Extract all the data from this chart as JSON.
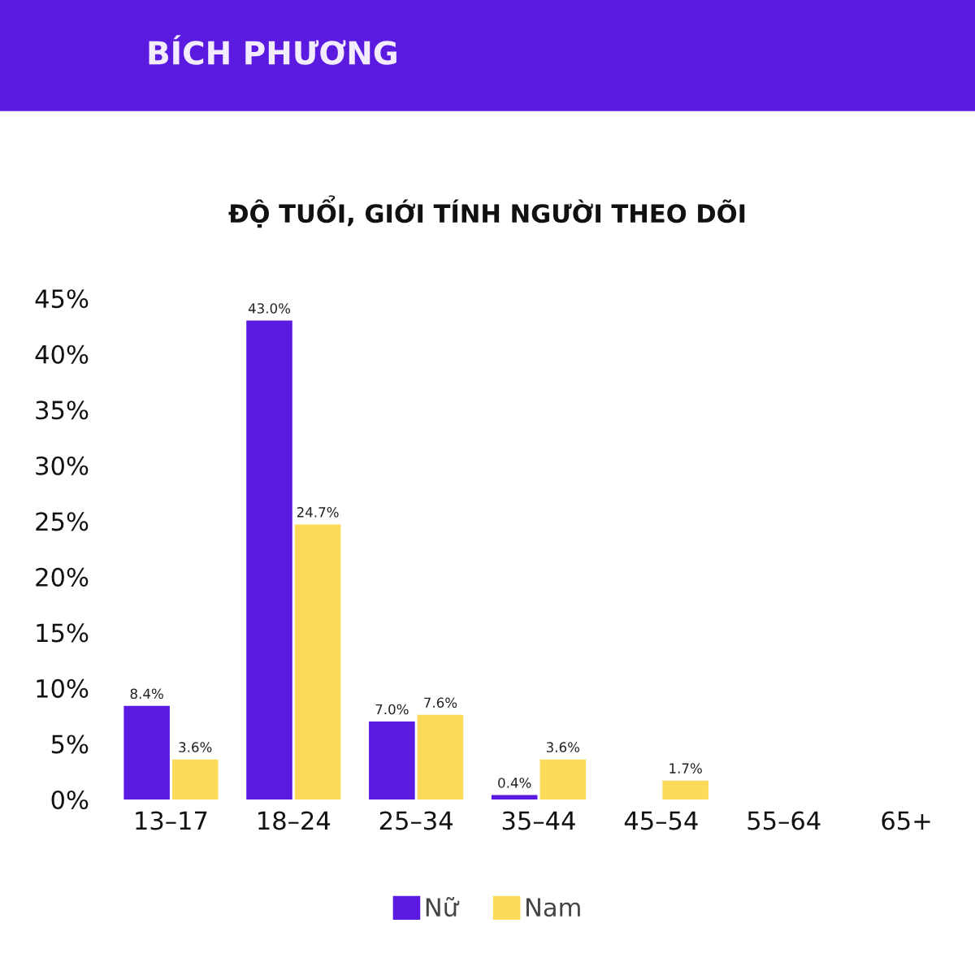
{
  "chart_data": {
    "type": "bar",
    "title": "ĐỘ TUỔI, GIỚI TÍNH NGƯỜI THEO DÕI",
    "annotations": [
      "BÍCH PHƯƠNG"
    ],
    "categories": [
      "13–17",
      "18–24",
      "25–34",
      "35–44",
      "45–54",
      "55–64",
      "65+"
    ],
    "series": [
      {
        "name": "Nữ",
        "color": "#5b1ae0",
        "values": [
          8.4,
          43.0,
          7.0,
          0.4,
          null,
          null,
          null
        ],
        "value_labels": [
          "8.4%",
          "43.0%",
          "7.0%",
          "0.4%",
          null,
          null,
          null
        ]
      },
      {
        "name": "Nam",
        "color": "#fddb5a",
        "values": [
          3.6,
          24.7,
          7.6,
          3.6,
          1.7,
          null,
          null
        ],
        "value_labels": [
          "3.6%",
          "24.7%",
          "7.6%",
          "3.6%",
          "1.7%",
          null,
          null
        ]
      }
    ],
    "ylim": [
      0,
      45
    ],
    "yticks": [
      {
        "value": 0,
        "label": "0%"
      },
      {
        "value": 5,
        "label": "5%"
      },
      {
        "value": 10,
        "label": "10%"
      },
      {
        "value": 15,
        "label": "15%"
      },
      {
        "value": 20,
        "label": "20%"
      },
      {
        "value": 25,
        "label": "25%"
      },
      {
        "value": 30,
        "label": "30%"
      },
      {
        "value": 35,
        "label": "35%"
      },
      {
        "value": 40,
        "label": "40%"
      },
      {
        "value": 45,
        "label": "45%"
      }
    ],
    "grid": false,
    "legend": "bottom"
  }
}
